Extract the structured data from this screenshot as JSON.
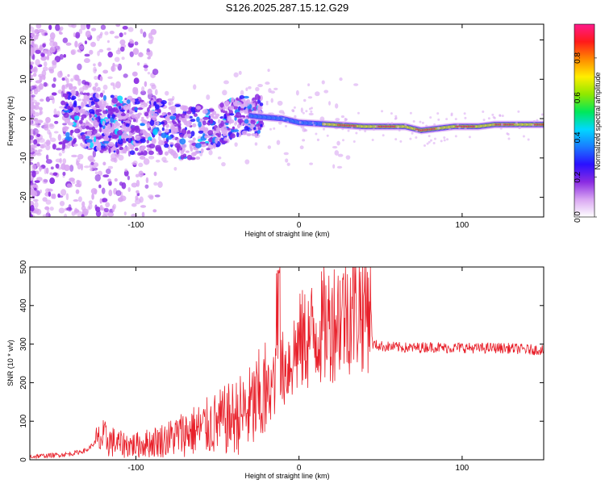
{
  "title": "S126.2025.287.15.12.G29",
  "colors": {
    "snr_line": "#e8202a",
    "axis": "#000000"
  },
  "chart_data": [
    {
      "type": "heatmap",
      "xlabel": "Height of straight line (km)",
      "ylabel": "Frequency (Hz)",
      "xlim": [
        -165,
        150
      ],
      "ylim": [
        -25,
        24
      ],
      "xticks": [
        -100,
        0,
        100
      ],
      "yticks": [
        -20,
        -10,
        0,
        10,
        20
      ],
      "colorbar": {
        "label": "Normalized spectral amplitude",
        "range": [
          0,
          0.97
        ],
        "ticks": [
          0.0,
          0.2,
          0.4,
          0.6,
          0.8
        ],
        "tick_labels": [
          "0.0",
          "0.2",
          "0.4",
          "0.6",
          "0.8"
        ],
        "colormap": [
          "#ffffff",
          "#d9a6f2",
          "#8a2be2",
          "#2a10ff",
          "#1a7bff",
          "#00d8ff",
          "#00e85a",
          "#8fe800",
          "#ffee00",
          "#ff8a00",
          "#ff1a1a",
          "#ff1a8c"
        ]
      },
      "ridge": {
        "x": [
          -165,
          -140,
          -120,
          -100,
          -80,
          -65,
          -50,
          -35,
          -25,
          -10,
          0,
          20,
          40,
          55,
          65,
          75,
          85,
          95,
          110,
          120,
          130,
          150
        ],
        "y": [
          -1,
          0,
          -1,
          -2,
          -2,
          -4,
          -2,
          1,
          0.5,
          0,
          -1,
          -1.5,
          -2,
          -2,
          -2,
          -3,
          -2.5,
          -2,
          -2,
          -1.5,
          -1.5,
          -1.5
        ]
      }
    },
    {
      "type": "line",
      "xlabel": "Height of straight line (km)",
      "ylabel": "SNR (10 * v/v)",
      "xlim": [
        -165,
        150
      ],
      "ylim": [
        0,
        500
      ],
      "xticks": [
        -100,
        0,
        100
      ],
      "yticks": [
        0,
        100,
        200,
        300,
        400,
        500
      ],
      "series": [
        {
          "name": "SNR",
          "x": [
            -165,
            -150,
            -140,
            -130,
            -125,
            -120,
            -110,
            -100,
            -90,
            -80,
            -70,
            -60,
            -50,
            -40,
            -30,
            -20,
            -12,
            -5,
            0,
            10,
            20,
            30,
            40,
            44,
            45,
            50,
            60,
            70,
            80,
            90,
            100,
            110,
            120,
            130,
            140,
            150
          ],
          "y": [
            8,
            12,
            15,
            25,
            45,
            55,
            40,
            38,
            45,
            55,
            70,
            80,
            95,
            110,
            130,
            170,
            220,
            260,
            300,
            330,
            360,
            395,
            405,
            408,
            300,
            295,
            292,
            290,
            293,
            290,
            291,
            289,
            290,
            289,
            286,
            285
          ]
        }
      ]
    }
  ]
}
